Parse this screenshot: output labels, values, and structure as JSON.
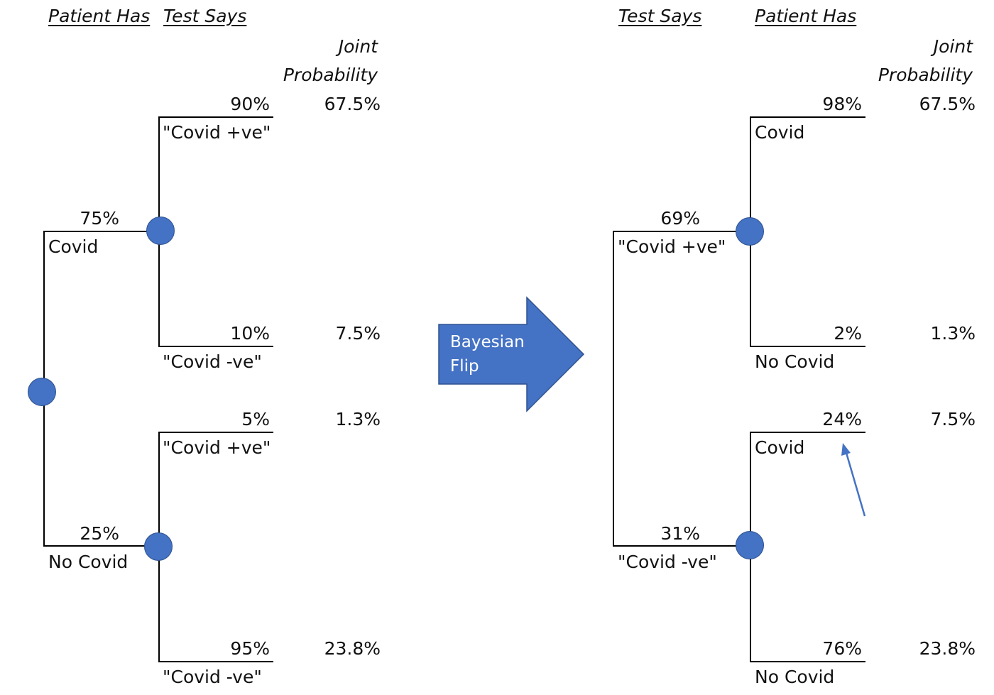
{
  "left_tree": {
    "headers": {
      "patient_has": "Patient Has",
      "test_says": "Test Says"
    },
    "joint_header_1": "Joint",
    "joint_header_2": "Probability",
    "level1": [
      {
        "prob": "75%",
        "label": "Covid"
      },
      {
        "prob": "25%",
        "label": "No Covid"
      }
    ],
    "level2": [
      {
        "prob": "90%",
        "label": "\"Covid +ve\"",
        "joint": "67.5%"
      },
      {
        "prob": "10%",
        "label": "\"Covid -ve\"",
        "joint": "7.5%"
      },
      {
        "prob": "5%",
        "label": "\"Covid +ve\"",
        "joint": "1.3%"
      },
      {
        "prob": "95%",
        "label": "\"Covid -ve\"",
        "joint": "23.8%"
      }
    ]
  },
  "flip_arrow": {
    "line1": "Bayesian",
    "line2": "Flip",
    "color": "#4472c4"
  },
  "right_tree": {
    "headers": {
      "test_says": "Test Says",
      "patient_has": "Patient Has"
    },
    "joint_header_1": "Joint",
    "joint_header_2": "Probability",
    "level1": [
      {
        "prob": "69%",
        "label": "\"Covid +ve\""
      },
      {
        "prob": "31%",
        "label": "\"Covid -ve\""
      }
    ],
    "level2": [
      {
        "prob": "98%",
        "label": "Covid",
        "joint": "67.5%"
      },
      {
        "prob": "2%",
        "label": "No Covid",
        "joint": "1.3%"
      },
      {
        "prob": "24%",
        "label": "Covid",
        "joint": "7.5%"
      },
      {
        "prob": "76%",
        "label": "No Covid",
        "joint": "23.8%"
      }
    ]
  },
  "colors": {
    "node": "#4472c4",
    "line": "#000000",
    "pointer_arrow": "#4472c4"
  }
}
